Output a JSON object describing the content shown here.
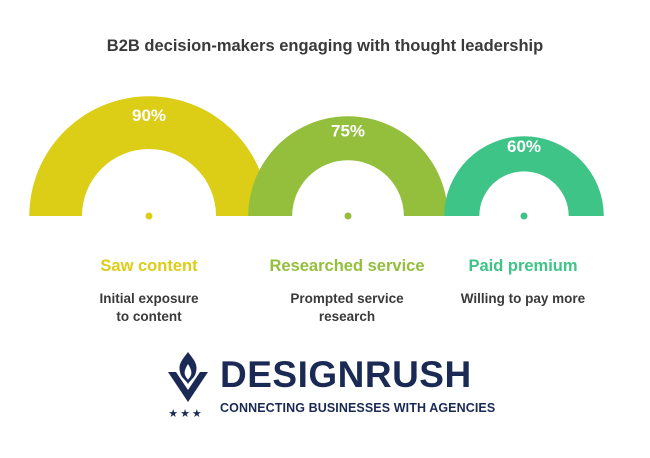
{
  "chart_data": {
    "type": "gauge",
    "title": "B2B decision-makers engaging with thought leadership",
    "categories": [
      "Saw content",
      "Researched service",
      "Paid premium"
    ],
    "values": [
      90,
      75,
      60
    ],
    "value_labels": [
      "90%",
      "75%",
      "60%"
    ],
    "descriptions": [
      [
        "Initial exposure",
        "to content"
      ],
      [
        "Prompted service",
        "research"
      ],
      [
        "Willing to pay more"
      ]
    ],
    "colors": [
      "#dccd17",
      "#93bf3c",
      "#3ec487"
    ]
  },
  "logo": {
    "name": "DESIGNRUSH",
    "tagline": "CONNECTING BUSINESSES WITH AGENCIES",
    "stars": "★★★",
    "icon": "shield-flame-icon",
    "color": "#1b2a55"
  }
}
